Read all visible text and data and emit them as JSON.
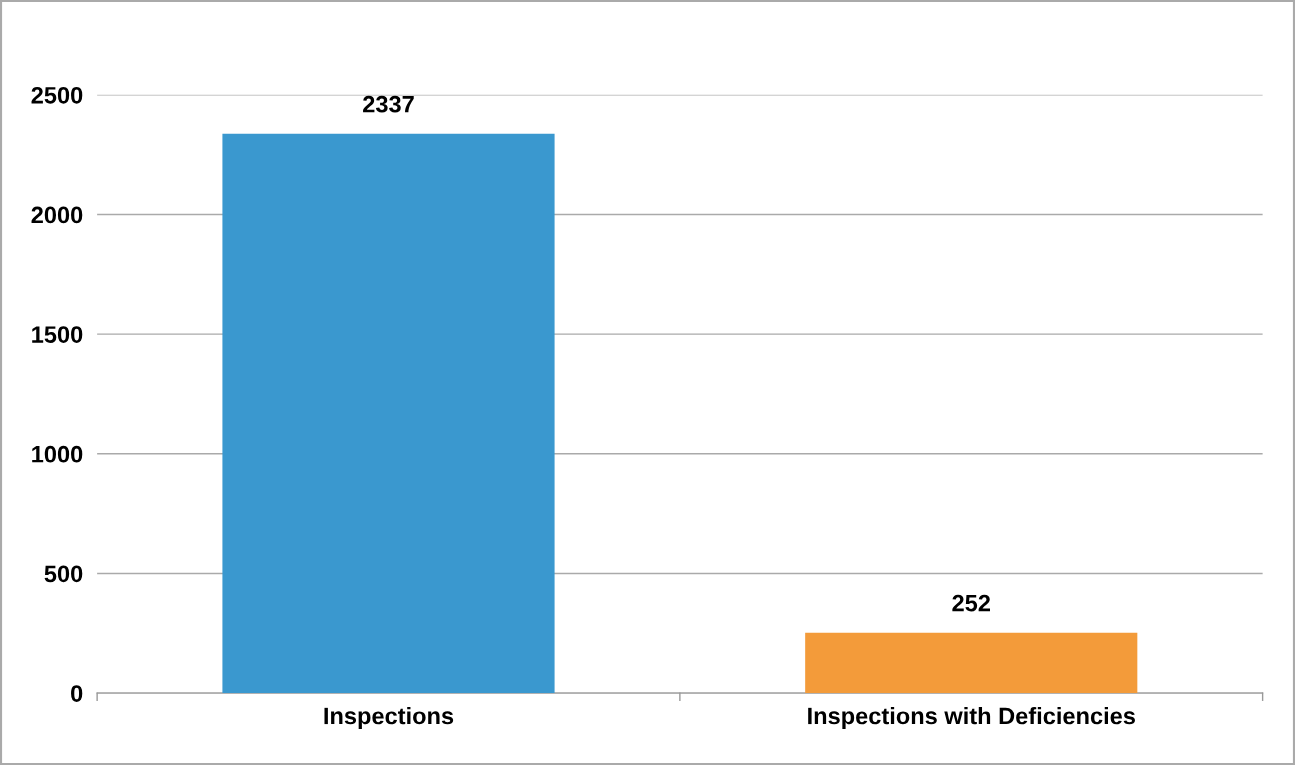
{
  "chart_data": {
    "type": "bar",
    "categories": [
      "Inspections",
      "Inspections with Deficiencies"
    ],
    "values": [
      2337,
      252
    ],
    "colors": [
      "#3a98cf",
      "#f39b3a"
    ],
    "ylim": [
      0,
      2500
    ],
    "yticks": [
      0,
      500,
      1000,
      1500,
      2000,
      2500
    ],
    "grid": "y",
    "data_labels": true
  }
}
